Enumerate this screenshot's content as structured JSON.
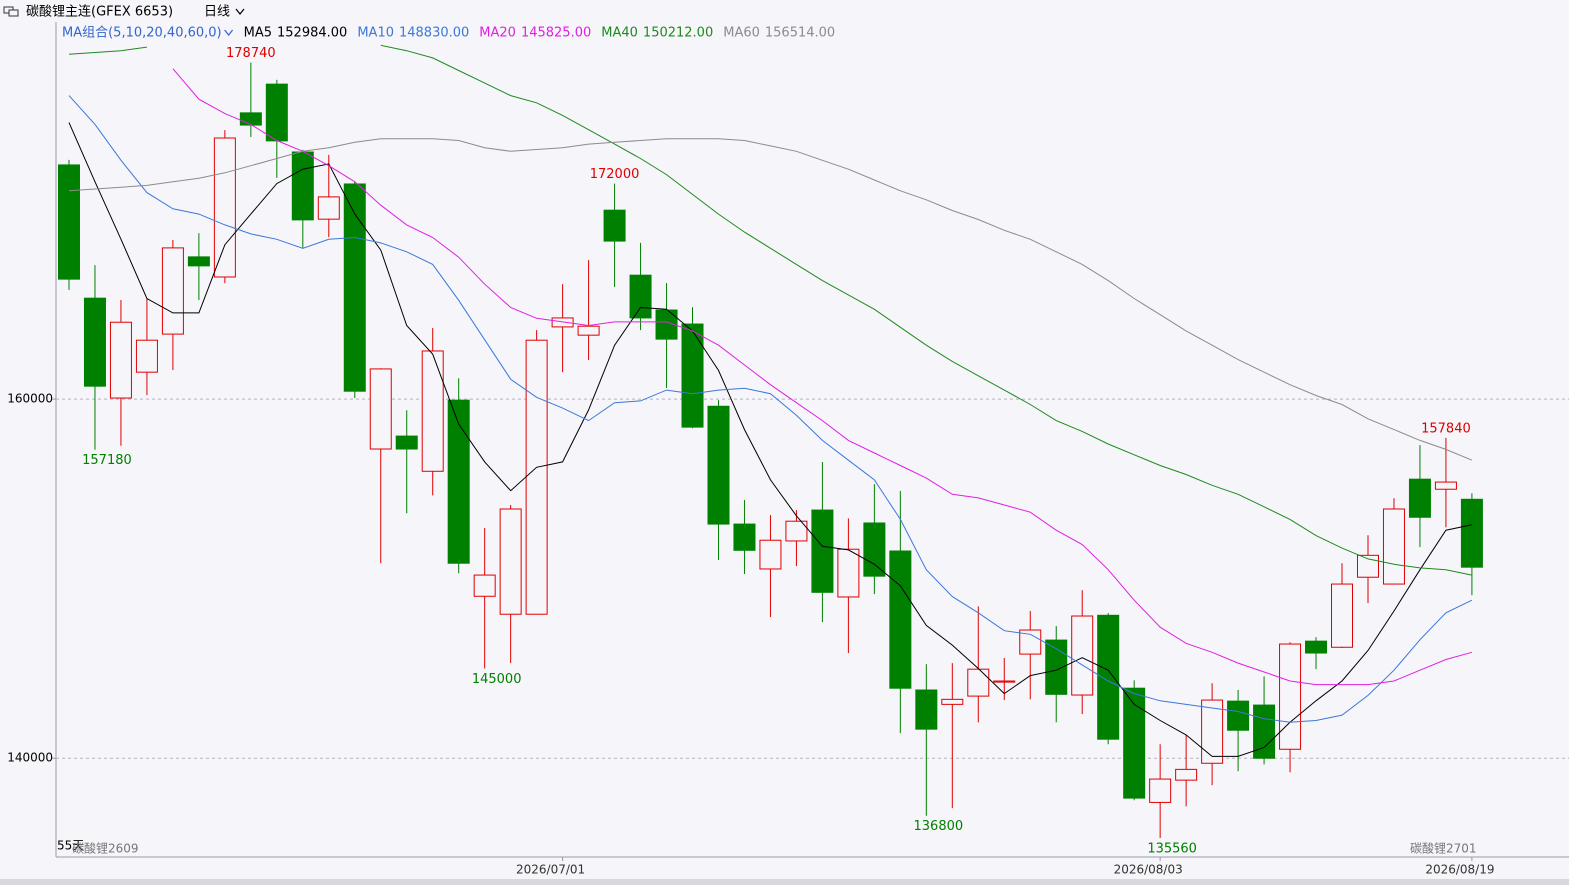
{
  "chart_data": {
    "type": "candlestick",
    "title": "碳酸锂主连(GFEX 6653)",
    "period": "日线",
    "indicator_label": "MA组合(5,10,20,40,60,0)",
    "days_label": "55天",
    "left_contract": "碳酸锂2609",
    "right_contract": "碳酸锂2701",
    "up_color": "#e00000",
    "down_color": "#008000",
    "ylim": [
      134500,
      181000
    ],
    "yticks": [
      140000,
      160000
    ],
    "grid": true,
    "categories": [
      null,
      null,
      null,
      null,
      null,
      null,
      null,
      null,
      null,
      null,
      null,
      null,
      null,
      null,
      null,
      null,
      null,
      null,
      null,
      "2026/07/01",
      null,
      null,
      null,
      null,
      null,
      null,
      null,
      null,
      null,
      null,
      null,
      null,
      null,
      null,
      null,
      null,
      null,
      null,
      null,
      null,
      null,
      null,
      "2026/08/03",
      null,
      null,
      null,
      null,
      null,
      null,
      null,
      null,
      null,
      null,
      null,
      "2026/08/19"
    ],
    "open": [
      173040,
      165620,
      160060,
      161500,
      163620,
      167920,
      166800,
      175940,
      177540,
      173760,
      170020,
      171980,
      157220,
      157940,
      155980,
      159940,
      149020,
      148020,
      148020,
      164020,
      163560,
      170520,
      166900,
      164960,
      164180,
      159600,
      153040,
      150540,
      152100,
      153820,
      148980,
      153100,
      151540,
      143800,
      143000,
      143460,
      144240,
      145800,
      146580,
      143520,
      147960,
      143900,
      137540,
      138780,
      139720,
      143180,
      142960,
      140500,
      146520,
      146180,
      150080,
      149700,
      155540,
      154980,
      154420
    ],
    "high": [
      173320,
      167460,
      165520,
      165620,
      168860,
      169240,
      174980,
      178740,
      177780,
      173880,
      173600,
      172100,
      161720,
      159380,
      163960,
      161160,
      152820,
      154100,
      163840,
      166400,
      167740,
      172000,
      168700,
      166460,
      165120,
      159940,
      154380,
      153540,
      153820,
      156500,
      153360,
      155260,
      154880,
      145240,
      145300,
      148460,
      145580,
      148200,
      147360,
      149360,
      148080,
      144340,
      140780,
      141280,
      144180,
      143800,
      144560,
      146460,
      146740,
      150860,
      152420,
      154480,
      157440,
      157840,
      154760
    ],
    "low": [
      166080,
      157180,
      157400,
      160220,
      161620,
      165520,
      166460,
      174600,
      172320,
      168420,
      169020,
      160060,
      150860,
      153640,
      154640,
      150300,
      145000,
      145300,
      148020,
      161500,
      162180,
      166240,
      163840,
      160620,
      158380,
      151040,
      150260,
      147860,
      150700,
      147580,
      145860,
      149140,
      141400,
      136800,
      137220,
      142000,
      143240,
      143280,
      142000,
      142460,
      140780,
      137660,
      135560,
      137320,
      138500,
      139280,
      139660,
      139220,
      144960,
      146140,
      148640,
      149700,
      151760,
      152860,
      149080
    ],
    "close": [
      166680,
      160720,
      164280,
      163280,
      168420,
      167420,
      174540,
      175260,
      174380,
      169980,
      171260,
      160440,
      161680,
      157220,
      162680,
      150860,
      150200,
      153880,
      163280,
      164520,
      164060,
      168800,
      164520,
      163340,
      158440,
      153040,
      151580,
      152140,
      153200,
      149240,
      151640,
      150140,
      143900,
      141620,
      143280,
      144960,
      144300,
      147140,
      143560,
      147920,
      141060,
      137780,
      138840,
      139380,
      143240,
      141560,
      140000,
      146360,
      145860,
      149700,
      151300,
      153880,
      153420,
      155380,
      150640
    ],
    "high_labels": [
      178740,
      172000,
      157840
    ],
    "low_labels": [
      157180,
      145000,
      136800,
      135560
    ],
    "series": [
      {
        "name": "MA5",
        "current_label": "152984.00",
        "color": "#000000",
        "values": [
          175400,
          172100,
          168900,
          165600,
          164800,
          164800,
          168600,
          170300,
          172000,
          172800,
          173100,
          170300,
          168300,
          164100,
          162500,
          158600,
          156500,
          154900,
          156200,
          156500,
          159400,
          163000,
          165100,
          165000,
          163800,
          161600,
          158300,
          155500,
          153500,
          151800,
          151600,
          150800,
          149600,
          147400,
          146300,
          145000,
          143600,
          144600,
          144900,
          145600,
          144900,
          143000,
          142100,
          141300,
          140100,
          140100,
          140600,
          142000,
          143200,
          144300,
          146000,
          148200,
          150500,
          152700,
          153000
        ]
      },
      {
        "name": "MA10",
        "current_label": "148830.00",
        "color": "#3c78d8",
        "values": [
          176900,
          175300,
          173300,
          171500,
          170600,
          170300,
          169700,
          169200,
          168900,
          168400,
          168900,
          169000,
          168700,
          168200,
          167500,
          165500,
          163300,
          161100,
          160100,
          159500,
          158800,
          159800,
          159900,
          160500,
          160300,
          160500,
          160600,
          160300,
          159100,
          157700,
          156600,
          155500,
          153300,
          150500,
          149000,
          148100,
          147100,
          146900,
          146100,
          145200,
          144300,
          143600,
          143200,
          143000,
          142800,
          142600,
          142200,
          142000,
          142100,
          142400,
          143500,
          144900,
          146600,
          148100,
          148800
        ]
      },
      {
        "name": "MA20",
        "current_label": "145825.00",
        "color": "#e020e0",
        "values": [
          null,
          null,
          null,
          null,
          178400,
          176700,
          175900,
          175300,
          174400,
          173800,
          173000,
          172100,
          170800,
          169700,
          169000,
          167900,
          166400,
          165100,
          164500,
          164300,
          164100,
          164300,
          164300,
          164300,
          163800,
          163000,
          161900,
          160800,
          159800,
          158800,
          157700,
          157000,
          156300,
          155600,
          154700,
          154500,
          154100,
          153700,
          152700,
          151900,
          150500,
          148800,
          147300,
          146400,
          145900,
          145300,
          144800,
          144300,
          144100,
          144100,
          144100,
          144300,
          144900,
          145500,
          145900
        ]
      },
      {
        "name": "MA40",
        "current_label": "150212.00",
        "color": "#1e8a1e",
        "values": [
          179200,
          179300,
          179400,
          179600,
          null,
          null,
          null,
          null,
          null,
          null,
          null,
          null,
          179700,
          179400,
          179000,
          178300,
          177600,
          176900,
          176500,
          175800,
          175000,
          174200,
          173400,
          172500,
          171400,
          170300,
          169300,
          168400,
          167500,
          166600,
          165800,
          165000,
          164000,
          163000,
          162100,
          161300,
          160500,
          159700,
          158800,
          158200,
          157500,
          156900,
          156300,
          155800,
          155200,
          154700,
          154000,
          153300,
          152400,
          151700,
          151100,
          150800,
          150600,
          150500,
          150200
        ]
      },
      {
        "name": "MA60",
        "current_label": "156514.00",
        "color": "#8c8c8c",
        "values": [
          171600,
          171700,
          171800,
          171900,
          172100,
          172300,
          172600,
          173000,
          173400,
          173800,
          174000,
          174300,
          174500,
          174500,
          174500,
          174400,
          174000,
          173800,
          173900,
          174000,
          174200,
          174300,
          174400,
          174500,
          174500,
          174500,
          174400,
          174100,
          173800,
          173300,
          172800,
          172200,
          171600,
          171100,
          170500,
          170000,
          169400,
          168900,
          168200,
          167500,
          166600,
          165600,
          164700,
          163800,
          163000,
          162200,
          161500,
          160800,
          160200,
          159700,
          158900,
          158300,
          157700,
          157200,
          156600
        ]
      }
    ]
  }
}
